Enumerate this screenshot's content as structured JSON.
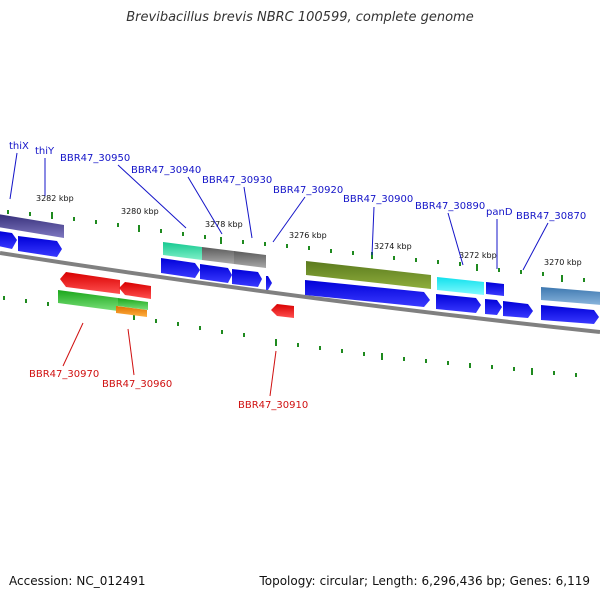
{
  "title": "Brevibacillus brevis NBRC 100599, complete genome",
  "footer": {
    "accession_label": "Accession:",
    "accession": "NC_012491",
    "topology_label": "Topology:",
    "topology": "circular;",
    "length_label": "Length:",
    "length": "6,296,436 bp;",
    "genes_label": "Genes:",
    "genes": "6,119"
  },
  "colors": {
    "forward_label": "#1414c8",
    "reverse_label": "#d01010",
    "cds_arrow": "#0a0af0",
    "backbone": "#808080",
    "tick": "#1f8a1f"
  },
  "scale_labels": [
    "3282 kbp",
    "3280 kbp",
    "3278 kbp",
    "3276 kbp",
    "3274 kbp",
    "3272 kbp",
    "3270 kbp"
  ],
  "forward_genes": [
    {
      "name": "thiX"
    },
    {
      "name": "thiY"
    },
    {
      "name": "BBR47_30950"
    },
    {
      "name": "BBR47_30940"
    },
    {
      "name": "BBR47_30930"
    },
    {
      "name": "BBR47_30920"
    },
    {
      "name": "BBR47_30900"
    },
    {
      "name": "BBR47_30890"
    },
    {
      "name": "panD"
    },
    {
      "name": "BBR47_30870"
    }
  ],
  "reverse_genes": [
    {
      "name": "BBR47_30970"
    },
    {
      "name": "BBR47_30960"
    },
    {
      "name": "BBR47_30910"
    }
  ]
}
